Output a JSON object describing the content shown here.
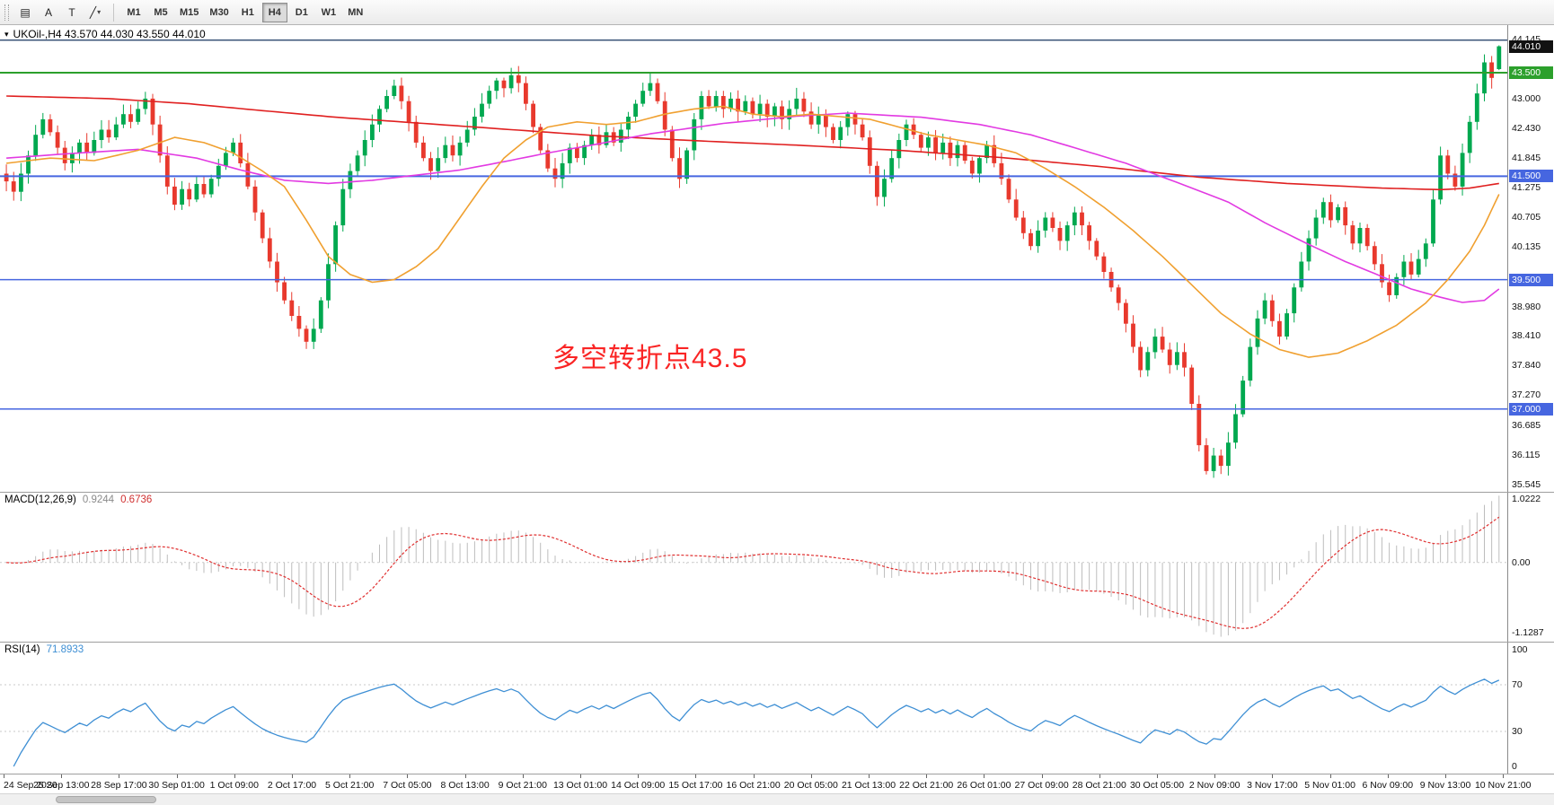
{
  "toolbar": {
    "tools": [
      {
        "name": "chart-window-icon",
        "glyph": "▤"
      },
      {
        "name": "arrow-tool-button",
        "glyph": "A"
      },
      {
        "name": "text-tool-button",
        "glyph": "T"
      },
      {
        "name": "line-tool-button",
        "glyph": "╱",
        "caret": "▾"
      }
    ],
    "timeframes": [
      "M1",
      "M5",
      "M15",
      "M30",
      "H1",
      "H4",
      "D1",
      "W1",
      "MN"
    ],
    "active_timeframe": "H4"
  },
  "chart_data": {
    "type": "candlestick",
    "main": {
      "symbol_caret": "▾",
      "symbol_line": "UKOil-,H4  43.570 44.030 43.550 44.010",
      "annotation": {
        "text": "多空转折点43.5",
        "color": "#fa2525"
      },
      "up_color": "#00a84f",
      "down_color": "#e8392d",
      "first_open": 41.55,
      "last_candle": {
        "o": 43.57,
        "h": 44.03,
        "l": 43.55,
        "c": 44.01
      },
      "closes": [
        41.4,
        41.2,
        41.55,
        41.9,
        42.3,
        42.6,
        42.35,
        42.05,
        41.75,
        41.95,
        42.15,
        41.95,
        42.2,
        42.4,
        42.25,
        42.5,
        42.7,
        42.55,
        42.8,
        43.0,
        42.5,
        41.9,
        41.3,
        40.95,
        41.25,
        41.05,
        41.35,
        41.15,
        41.45,
        41.7,
        41.95,
        42.15,
        41.75,
        41.3,
        40.8,
        40.3,
        39.85,
        39.45,
        39.1,
        38.8,
        38.55,
        38.3,
        38.55,
        39.1,
        39.8,
        40.55,
        41.25,
        41.6,
        41.9,
        42.2,
        42.5,
        42.8,
        43.05,
        43.25,
        42.95,
        42.55,
        42.15,
        41.85,
        41.6,
        41.85,
        42.1,
        41.9,
        42.15,
        42.4,
        42.65,
        42.9,
        43.15,
        43.35,
        43.2,
        43.45,
        43.3,
        42.9,
        42.45,
        42.0,
        41.65,
        41.45,
        41.75,
        42.05,
        41.85,
        42.1,
        42.3,
        42.1,
        42.35,
        42.15,
        42.4,
        42.65,
        42.9,
        43.15,
        43.3,
        42.95,
        42.4,
        41.85,
        41.45,
        42.0,
        42.6,
        43.05,
        42.85,
        43.05,
        42.8,
        43.0,
        42.75,
        42.95,
        42.7,
        42.9,
        42.65,
        42.85,
        42.6,
        42.8,
        43.0,
        42.75,
        42.5,
        42.7,
        42.45,
        42.2,
        42.45,
        42.7,
        42.5,
        42.25,
        41.7,
        41.1,
        41.45,
        41.85,
        42.2,
        42.5,
        42.3,
        42.05,
        42.25,
        41.95,
        42.15,
        41.85,
        42.1,
        41.8,
        41.55,
        41.85,
        42.1,
        41.75,
        41.45,
        41.05,
        40.7,
        40.4,
        40.15,
        40.45,
        40.7,
        40.5,
        40.25,
        40.55,
        40.8,
        40.55,
        40.25,
        39.95,
        39.65,
        39.35,
        39.05,
        38.65,
        38.2,
        37.75,
        38.1,
        38.4,
        38.15,
        37.85,
        38.1,
        37.8,
        37.1,
        36.3,
        35.8,
        36.1,
        35.9,
        36.35,
        36.9,
        37.55,
        38.2,
        38.75,
        39.1,
        38.7,
        38.4,
        38.85,
        39.35,
        39.85,
        40.3,
        40.7,
        41.0,
        40.65,
        40.9,
        40.55,
        40.2,
        40.5,
        40.15,
        39.8,
        39.45,
        39.2,
        39.55,
        39.85,
        39.6,
        39.9,
        40.2,
        41.05,
        41.9,
        41.55,
        41.3,
        41.95,
        42.55,
        43.1,
        43.7,
        43.4,
        44.01
      ],
      "ma": [
        {
          "name": "ma-slow-red",
          "color": "#e02020",
          "points": [
            [
              0,
              43.05
            ],
            [
              14,
              43.0
            ],
            [
              25,
              42.9
            ],
            [
              34,
              42.78
            ],
            [
              45,
              42.64
            ],
            [
              61,
              42.48
            ],
            [
              81,
              42.28
            ],
            [
              95,
              42.18
            ],
            [
              108,
              42.1
            ],
            [
              122,
              42.0
            ],
            [
              136,
              41.86
            ],
            [
              150,
              41.68
            ],
            [
              163,
              41.48
            ],
            [
              175,
              41.36
            ],
            [
              188,
              41.27
            ],
            [
              196,
              41.24
            ],
            [
              200,
              41.27
            ],
            [
              204,
              41.36
            ]
          ]
        },
        {
          "name": "ma-medium-magenta",
          "color": "#e23ae2",
          "points": [
            [
              0,
              41.85
            ],
            [
              10,
              41.95
            ],
            [
              18,
              42.02
            ],
            [
              26,
              41.85
            ],
            [
              32,
              41.62
            ],
            [
              38,
              41.42
            ],
            [
              44,
              41.36
            ],
            [
              50,
              41.42
            ],
            [
              56,
              41.52
            ],
            [
              62,
              41.62
            ],
            [
              68,
              41.78
            ],
            [
              74,
              41.95
            ],
            [
              80,
              42.1
            ],
            [
              88,
              42.32
            ],
            [
              98,
              42.52
            ],
            [
              108,
              42.66
            ],
            [
              115,
              42.72
            ],
            [
              125,
              42.64
            ],
            [
              133,
              42.5
            ],
            [
              140,
              42.3
            ],
            [
              146,
              42.05
            ],
            [
              153,
              41.75
            ],
            [
              160,
              41.38
            ],
            [
              167,
              41.0
            ],
            [
              172,
              40.6
            ],
            [
              178,
              40.18
            ],
            [
              183,
              39.85
            ],
            [
              188,
              39.56
            ],
            [
              192,
              39.32
            ],
            [
              196,
              39.16
            ],
            [
              199,
              39.06
            ],
            [
              202,
              39.1
            ],
            [
              204,
              39.32
            ]
          ]
        },
        {
          "name": "ma-fast-orange",
          "color": "#f0a030",
          "points": [
            [
              0,
              41.75
            ],
            [
              6,
              41.85
            ],
            [
              12,
              41.8
            ],
            [
              18,
              42.0
            ],
            [
              23,
              42.25
            ],
            [
              27,
              42.15
            ],
            [
              31,
              41.95
            ],
            [
              35,
              41.6
            ],
            [
              38,
              41.3
            ],
            [
              41,
              40.65
            ],
            [
              44,
              39.95
            ],
            [
              47,
              39.6
            ],
            [
              50,
              39.45
            ],
            [
              53,
              39.5
            ],
            [
              56,
              39.75
            ],
            [
              59,
              40.1
            ],
            [
              62,
              40.7
            ],
            [
              65,
              41.3
            ],
            [
              68,
              41.85
            ],
            [
              71,
              42.2
            ],
            [
              74,
              42.45
            ],
            [
              78,
              42.55
            ],
            [
              82,
              42.5
            ],
            [
              86,
              42.55
            ],
            [
              90,
              42.7
            ],
            [
              94,
              42.8
            ],
            [
              98,
              42.85
            ],
            [
              102,
              42.7
            ],
            [
              106,
              42.65
            ],
            [
              110,
              42.7
            ],
            [
              114,
              42.65
            ],
            [
              118,
              42.6
            ],
            [
              122,
              42.45
            ],
            [
              126,
              42.3
            ],
            [
              130,
              42.2
            ],
            [
              134,
              42.1
            ],
            [
              138,
              41.95
            ],
            [
              142,
              41.65
            ],
            [
              146,
              41.3
            ],
            [
              150,
              40.9
            ],
            [
              154,
              40.45
            ],
            [
              158,
              39.95
            ],
            [
              162,
              39.4
            ],
            [
              166,
              38.85
            ],
            [
              170,
              38.45
            ],
            [
              174,
              38.15
            ],
            [
              178,
              38.0
            ],
            [
              182,
              38.08
            ],
            [
              186,
              38.32
            ],
            [
              190,
              38.62
            ],
            [
              194,
              39.05
            ],
            [
              197,
              39.5
            ],
            [
              200,
              40.05
            ],
            [
              202,
              40.55
            ],
            [
              204,
              41.15
            ]
          ]
        }
      ],
      "hlines": [
        {
          "price": 44.13,
          "color": "#16355f",
          "width": 1.2
        },
        {
          "price": 43.5,
          "color": "#2ca02c",
          "width": 2
        },
        {
          "price": 41.5,
          "color": "#4666e0",
          "width": 2
        },
        {
          "price": 39.5,
          "color": "#4666e0",
          "width": 1.6
        },
        {
          "price": 37.0,
          "color": "#4666e0",
          "width": 1.6
        }
      ],
      "price_ticks": [
        "44.145",
        "43.000",
        "42.430",
        "41.845",
        "41.275",
        "40.705",
        "40.135",
        "38.980",
        "38.410",
        "37.840",
        "37.270",
        "36.685",
        "36.115",
        "35.545"
      ],
      "price_badges": [
        {
          "text": "44.010",
          "value": 44.01,
          "bg": "#111111"
        },
        {
          "text": "43.500",
          "value": 43.5,
          "bg": "#2ca02c"
        },
        {
          "text": "41.500",
          "value": 41.5,
          "bg": "#4666e0"
        },
        {
          "text": "39.500",
          "value": 39.5,
          "bg": "#4666e0"
        },
        {
          "text": "37.000",
          "value": 37.0,
          "bg": "#4666e0"
        }
      ]
    },
    "macd": {
      "label": "MACD(12,26,9)",
      "value_main": "0.9244",
      "value_signal": "0.6736",
      "axis": [
        "1.0222",
        "0.00",
        "-1.1287"
      ],
      "hist_color": "#bdbdbd",
      "signal_color": "#e03030",
      "params": {
        "fast": 12,
        "slow": 26,
        "signal": 9
      }
    },
    "rsi": {
      "label": "RSI(14)",
      "value": "71.8933",
      "period": 14,
      "axis": [
        "100",
        "70",
        "30",
        "0"
      ],
      "levels": [
        70,
        30
      ],
      "color": "#3e8fd4"
    },
    "time_labels": [
      "24 Sep 2020",
      "25 Sep 13:00",
      "28 Sep 17:00",
      "30 Sep 01:00",
      "1 Oct 09:00",
      "2 Oct 17:00",
      "5 Oct 21:00",
      "7 Oct 05:00",
      "8 Oct 13:00",
      "9 Oct 21:00",
      "13 Oct 01:00",
      "14 Oct 09:00",
      "15 Oct 17:00",
      "16 Oct 21:00",
      "20 Oct 05:00",
      "21 Oct 13:00",
      "22 Oct 21:00",
      "26 Oct 01:00",
      "27 Oct 09:00",
      "28 Oct 21:00",
      "30 Oct 05:00",
      "2 Nov 09:00",
      "3 Nov 17:00",
      "5 Nov 01:00",
      "6 Nov 09:00",
      "9 Nov 13:00",
      "10 Nov 21:00"
    ]
  }
}
